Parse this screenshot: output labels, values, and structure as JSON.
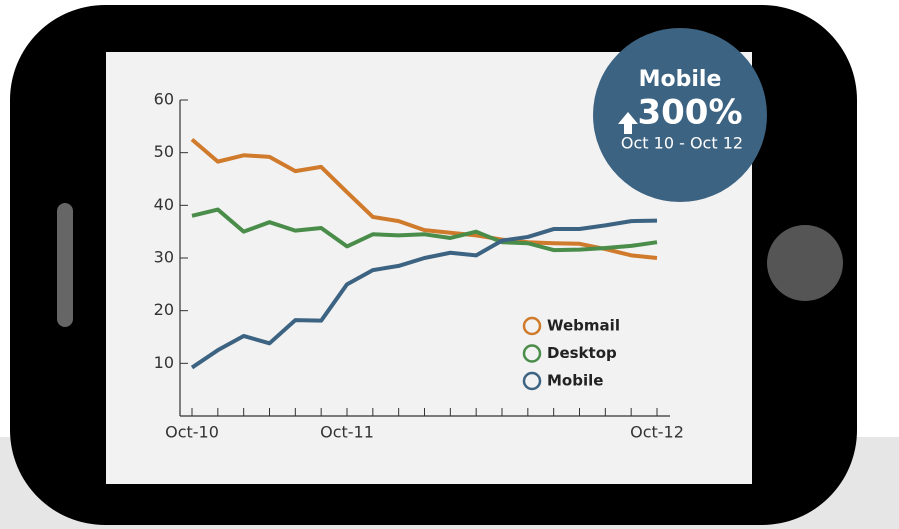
{
  "chart_data": {
    "type": "line",
    "categories": [
      "Oct-10",
      null,
      null,
      null,
      null,
      null,
      "Oct-11",
      null,
      null,
      null,
      null,
      null,
      null,
      null,
      null,
      null,
      null,
      null,
      "Oct-12"
    ],
    "series": [
      {
        "name": "Webmail",
        "color": "#d07a2c",
        "values": [
          52.5,
          48.3,
          49.5,
          49.2,
          46.5,
          47.3,
          42.5,
          37.8,
          37,
          35.3,
          34.8,
          34.3,
          33.5,
          33,
          32.8,
          32.7,
          31.7,
          30.5,
          30
        ]
      },
      {
        "name": "Desktop",
        "color": "#4a8c4a",
        "values": [
          38,
          39.2,
          35,
          36.8,
          35.2,
          35.7,
          32.2,
          34.5,
          34.3,
          34.5,
          33.8,
          35,
          33,
          32.8,
          31.5,
          31.6,
          31.9,
          32.3,
          33
        ]
      },
      {
        "name": "Mobile",
        "color": "#3d6382",
        "values": [
          9.2,
          12.5,
          15.2,
          13.8,
          18.2,
          18.1,
          25,
          27.7,
          28.5,
          30,
          31,
          30.5,
          33.3,
          34,
          35.5,
          35.5,
          36.2,
          37,
          37.1
        ]
      }
    ],
    "ylim": [
      0,
      60
    ],
    "yticks": [
      10,
      20,
      30,
      40,
      50,
      60
    ],
    "badge": {
      "title": "Mobile",
      "value": "300%",
      "period": "Oct 10 - Oct 12"
    }
  }
}
